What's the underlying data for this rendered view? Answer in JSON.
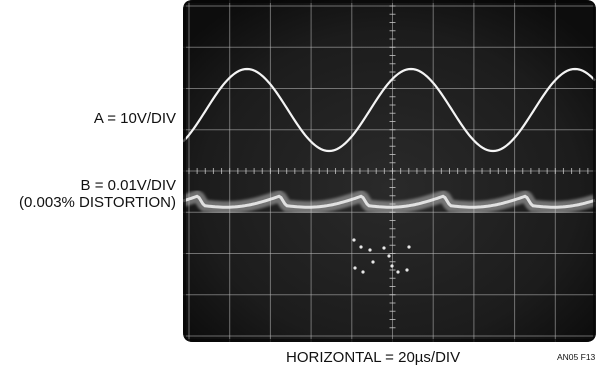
{
  "channel_a": {
    "label": "A = 10V/DIV"
  },
  "channel_b": {
    "label_line1": "B = 0.01V/DIV",
    "label_line2": "(0.003% DISTORTION)"
  },
  "horizontal": {
    "label": "HORIZONTAL = 20µs/DIV"
  },
  "figure_label": "AN05 F13",
  "colors": {
    "screen": "#1b1b1b",
    "grid": "#b9b9b9",
    "trace": "#f2f2f2",
    "page": "#ffffff"
  }
}
